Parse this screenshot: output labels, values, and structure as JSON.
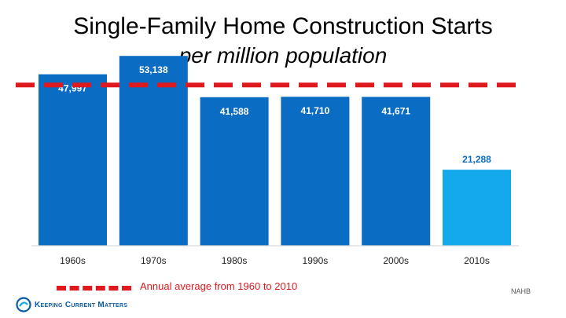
{
  "chart_data": {
    "type": "bar",
    "title": "Single-Family Home Construction Starts",
    "subtitle": "per million population",
    "categories": [
      "1960s",
      "1970s",
      "1980s",
      "1990s",
      "2000s",
      "2010s"
    ],
    "values": [
      47997,
      53138,
      41588,
      41710,
      41671,
      21288
    ],
    "value_labels": [
      "47,997",
      "53,138",
      "41,588",
      "41,710",
      "41,671",
      "21,288"
    ],
    "bar_colors": [
      "#0a6cc2",
      "#0a6cc2",
      "#0a6cc2",
      "#0a6cc2",
      "#0a6cc2",
      "#14a9ea"
    ],
    "ylim": [
      0,
      60000
    ],
    "reference_line": {
      "value": 45000,
      "label": "Annual average from 1960 to 2010",
      "color": "#e0191e",
      "style": "dashed"
    },
    "legend_position": "bottom-left",
    "grid": false,
    "xlabel": "",
    "ylabel": ""
  },
  "source": "NAHB",
  "brand": "Keeping Current Matters"
}
